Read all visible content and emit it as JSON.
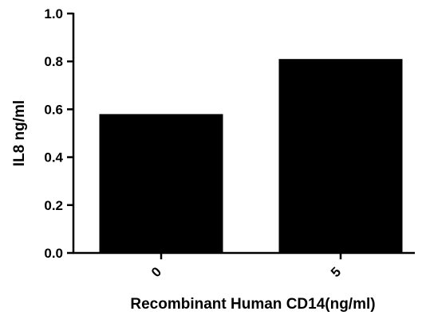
{
  "chart_data": {
    "type": "bar",
    "categories": [
      "0",
      "5"
    ],
    "values": [
      0.58,
      0.81
    ],
    "title": "",
    "xlabel": "Recombinant Human CD14(ng/ml)",
    "ylabel": "IL8 ng/ml",
    "ylim": [
      0,
      1.0
    ],
    "yticks": [
      "0.0",
      "0.2",
      "0.4",
      "0.6",
      "0.8",
      "1.0"
    ],
    "bar_color": "#000000",
    "grid": false
  }
}
